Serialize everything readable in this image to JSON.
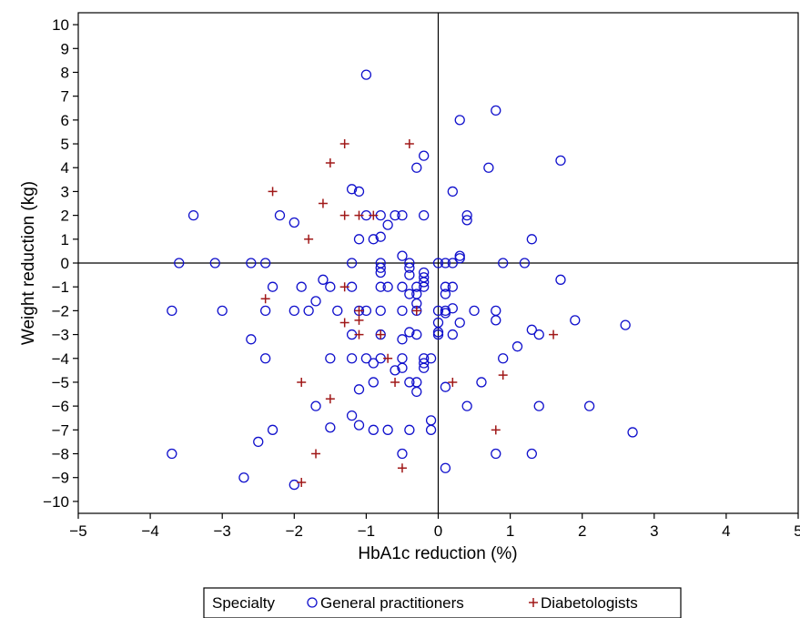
{
  "chart_data": {
    "type": "scatter",
    "title": "",
    "xlabel": "HbA1c reduction (%)",
    "ylabel": "Weight reduction (kg)",
    "xlim": [
      -5,
      5
    ],
    "ylim": [
      -10.5,
      10.5
    ],
    "x_ticks": [
      -5,
      -4,
      -3,
      -2,
      -1,
      0,
      1,
      2,
      3,
      4,
      5
    ],
    "y_ticks": [
      -10,
      -9,
      -8,
      -7,
      -6,
      -5,
      -4,
      -3,
      -2,
      -1,
      0,
      1,
      2,
      3,
      4,
      5,
      6,
      7,
      8,
      9,
      10
    ],
    "reference_lines": {
      "x": 0,
      "y": 0
    },
    "grid": false,
    "legend": {
      "position": "bottom",
      "title": "Specialty"
    },
    "series": [
      {
        "name": "General practitioners",
        "marker": "circle",
        "color": "#1010cc",
        "points": [
          [
            -1.0,
            7.9
          ],
          [
            0.8,
            6.4
          ],
          [
            0.3,
            6.0
          ],
          [
            1.7,
            4.3
          ],
          [
            0.7,
            4.0
          ],
          [
            -0.2,
            4.5
          ],
          [
            -0.3,
            4.0
          ],
          [
            0.2,
            3.0
          ],
          [
            -1.2,
            3.1
          ],
          [
            -1.1,
            3.0
          ],
          [
            -3.4,
            2.0
          ],
          [
            -2.2,
            2.0
          ],
          [
            -2.0,
            1.7
          ],
          [
            -1.0,
            2.0
          ],
          [
            -0.8,
            2.0
          ],
          [
            -0.6,
            2.0
          ],
          [
            -0.5,
            2.0
          ],
          [
            -0.2,
            2.0
          ],
          [
            0.4,
            2.0
          ],
          [
            0.4,
            1.8
          ],
          [
            -0.7,
            1.6
          ],
          [
            -0.9,
            1.0
          ],
          [
            -1.1,
            1.0
          ],
          [
            -0.8,
            1.1
          ],
          [
            1.3,
            1.0
          ],
          [
            0.3,
            0.3
          ],
          [
            0.3,
            0.2
          ],
          [
            -0.5,
            0.3
          ],
          [
            -3.6,
            0.0
          ],
          [
            -3.1,
            0.0
          ],
          [
            -2.6,
            0.0
          ],
          [
            -2.4,
            0.0
          ],
          [
            -1.2,
            0.0
          ],
          [
            -0.8,
            0.0
          ],
          [
            -0.4,
            0.0
          ],
          [
            0.0,
            0.0
          ],
          [
            0.1,
            0.0
          ],
          [
            0.2,
            0.0
          ],
          [
            0.9,
            0.0
          ],
          [
            1.2,
            0.0
          ],
          [
            -0.8,
            -0.2
          ],
          [
            -0.8,
            -0.4
          ],
          [
            -0.4,
            -0.2
          ],
          [
            -0.2,
            -0.4
          ],
          [
            -0.4,
            -0.5
          ],
          [
            -0.2,
            -0.6
          ],
          [
            -0.2,
            -0.8
          ],
          [
            -0.2,
            -1.0
          ],
          [
            -1.6,
            -0.7
          ],
          [
            -1.5,
            -1.0
          ],
          [
            -1.9,
            -1.0
          ],
          [
            -2.3,
            -1.0
          ],
          [
            -1.2,
            -1.0
          ],
          [
            -0.8,
            -1.0
          ],
          [
            -0.7,
            -1.0
          ],
          [
            -0.5,
            -1.0
          ],
          [
            -0.3,
            -1.0
          ],
          [
            -0.3,
            -1.3
          ],
          [
            -0.4,
            -1.3
          ],
          [
            0.1,
            -1.0
          ],
          [
            0.2,
            -1.0
          ],
          [
            1.7,
            -0.7
          ],
          [
            -0.3,
            -1.7
          ],
          [
            0.1,
            -1.3
          ],
          [
            -1.7,
            -1.6
          ],
          [
            -3.7,
            -2.0
          ],
          [
            -3.0,
            -2.0
          ],
          [
            -2.4,
            -2.0
          ],
          [
            -2.0,
            -2.0
          ],
          [
            -1.8,
            -2.0
          ],
          [
            -1.4,
            -2.0
          ],
          [
            -1.1,
            -2.0
          ],
          [
            -1.0,
            -2.0
          ],
          [
            -0.8,
            -2.0
          ],
          [
            -0.5,
            -2.0
          ],
          [
            -0.3,
            -2.0
          ],
          [
            0.0,
            -2.0
          ],
          [
            0.1,
            -2.0
          ],
          [
            0.2,
            -1.9
          ],
          [
            0.1,
            -2.1
          ],
          [
            0.5,
            -2.0
          ],
          [
            0.8,
            -2.0
          ],
          [
            0.0,
            -2.5
          ],
          [
            0.3,
            -2.5
          ],
          [
            0.8,
            -2.4
          ],
          [
            1.9,
            -2.4
          ],
          [
            2.6,
            -2.6
          ],
          [
            1.3,
            -2.8
          ],
          [
            1.4,
            -3.0
          ],
          [
            -2.6,
            -3.2
          ],
          [
            -1.2,
            -3.0
          ],
          [
            -0.8,
            -3.0
          ],
          [
            -0.5,
            -3.2
          ],
          [
            -0.4,
            -2.9
          ],
          [
            -0.3,
            -3.0
          ],
          [
            0.0,
            -2.9
          ],
          [
            0.0,
            -3.0
          ],
          [
            0.2,
            -3.0
          ],
          [
            1.1,
            -3.5
          ],
          [
            -2.4,
            -4.0
          ],
          [
            -1.5,
            -4.0
          ],
          [
            -1.2,
            -4.0
          ],
          [
            -1.0,
            -4.0
          ],
          [
            -0.9,
            -4.2
          ],
          [
            -0.8,
            -4.0
          ],
          [
            -0.6,
            -4.5
          ],
          [
            -0.5,
            -4.0
          ],
          [
            -0.5,
            -4.4
          ],
          [
            -0.2,
            -4.0
          ],
          [
            -0.2,
            -4.2
          ],
          [
            -0.2,
            -4.4
          ],
          [
            -0.1,
            -4.0
          ],
          [
            0.9,
            -4.0
          ],
          [
            -0.9,
            -5.0
          ],
          [
            -0.4,
            -5.0
          ],
          [
            -0.3,
            -5.0
          ],
          [
            -0.3,
            -5.4
          ],
          [
            -1.1,
            -5.3
          ],
          [
            0.1,
            -5.2
          ],
          [
            0.6,
            -5.0
          ],
          [
            -1.7,
            -6.0
          ],
          [
            -1.5,
            -6.9
          ],
          [
            -1.2,
            -6.4
          ],
          [
            -1.1,
            -6.8
          ],
          [
            -2.3,
            -7.0
          ],
          [
            -0.9,
            -7.0
          ],
          [
            -0.7,
            -7.0
          ],
          [
            -0.4,
            -7.0
          ],
          [
            -0.1,
            -7.0
          ],
          [
            -0.1,
            -6.6
          ],
          [
            0.4,
            -6.0
          ],
          [
            1.4,
            -6.0
          ],
          [
            2.1,
            -6.0
          ],
          [
            2.7,
            -7.1
          ],
          [
            -2.5,
            -7.5
          ],
          [
            -3.7,
            -8.0
          ],
          [
            -0.5,
            -8.0
          ],
          [
            0.8,
            -8.0
          ],
          [
            1.3,
            -8.0
          ],
          [
            0.1,
            -8.6
          ],
          [
            -2.7,
            -9.0
          ],
          [
            -2.0,
            -9.3
          ]
        ]
      },
      {
        "name": "Diabetologists",
        "marker": "plus",
        "color": "#a01818",
        "points": [
          [
            -1.3,
            5.0
          ],
          [
            -0.4,
            5.0
          ],
          [
            -1.5,
            4.2
          ],
          [
            -2.3,
            3.0
          ],
          [
            -1.6,
            2.5
          ],
          [
            -1.3,
            2.0
          ],
          [
            -1.1,
            2.0
          ],
          [
            -0.9,
            2.0
          ],
          [
            -1.8,
            1.0
          ],
          [
            -1.3,
            -1.0
          ],
          [
            -2.4,
            -1.5
          ],
          [
            -1.1,
            -2.0
          ],
          [
            -0.3,
            -2.0
          ],
          [
            -1.1,
            -2.4
          ],
          [
            -1.3,
            -2.5
          ],
          [
            -1.1,
            -3.0
          ],
          [
            -0.8,
            -3.0
          ],
          [
            1.6,
            -3.0
          ],
          [
            -0.7,
            -4.0
          ],
          [
            -1.9,
            -5.0
          ],
          [
            -0.6,
            -5.0
          ],
          [
            0.2,
            -5.0
          ],
          [
            0.9,
            -4.7
          ],
          [
            -1.5,
            -5.7
          ],
          [
            0.8,
            -7.0
          ],
          [
            -1.7,
            -8.0
          ],
          [
            -0.5,
            -8.6
          ],
          [
            -1.9,
            -9.2
          ]
        ]
      }
    ]
  }
}
